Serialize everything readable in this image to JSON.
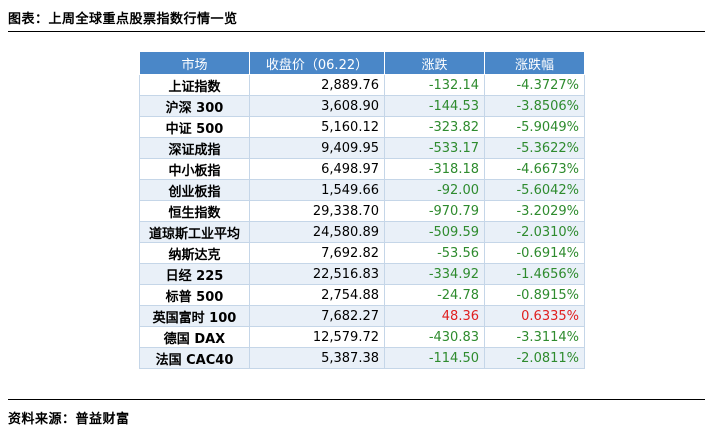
{
  "title": "图表：上周全球重点股票指数行情一览",
  "source": "资料来源：普益财富",
  "headers": [
    "市场",
    "收盘价（06.22）",
    "涨跌",
    "涨跌幅"
  ],
  "rows": [
    {
      "market": "上证指数",
      "close": "2,889.76",
      "change": "-132.14",
      "pct": "-4.3727%",
      "dir": "neg"
    },
    {
      "market": "沪深 300",
      "close": "3,608.90",
      "change": "-144.53",
      "pct": "-3.8506%",
      "dir": "neg"
    },
    {
      "market": "中证 500",
      "close": "5,160.12",
      "change": "-323.82",
      "pct": "-5.9049%",
      "dir": "neg"
    },
    {
      "market": "深证成指",
      "close": "9,409.95",
      "change": "-533.17",
      "pct": "-5.3622%",
      "dir": "neg"
    },
    {
      "market": "中小板指",
      "close": "6,498.97",
      "change": "-318.18",
      "pct": "-4.6673%",
      "dir": "neg"
    },
    {
      "market": "创业板指",
      "close": "1,549.66",
      "change": "-92.00",
      "pct": "-5.6042%",
      "dir": "neg"
    },
    {
      "market": "恒生指数",
      "close": "29,338.70",
      "change": "-970.79",
      "pct": "-3.2029%",
      "dir": "neg"
    },
    {
      "market": "道琼斯工业平均",
      "close": "24,580.89",
      "change": "-509.59",
      "pct": "-2.0310%",
      "dir": "neg"
    },
    {
      "market": "纳斯达克",
      "close": "7,692.82",
      "change": "-53.56",
      "pct": "-0.6914%",
      "dir": "neg"
    },
    {
      "market": "日经 225",
      "close": "22,516.83",
      "change": "-334.92",
      "pct": "-1.4656%",
      "dir": "neg"
    },
    {
      "market": "标普 500",
      "close": "2,754.88",
      "change": "-24.78",
      "pct": "-0.8915%",
      "dir": "neg"
    },
    {
      "market": "英国富时 100",
      "close": "7,682.27",
      "change": "48.36",
      "pct": "0.6335%",
      "dir": "pos"
    },
    {
      "market": "德国 DAX",
      "close": "12,579.72",
      "change": "-430.83",
      "pct": "-3.3114%",
      "dir": "neg"
    },
    {
      "market": "法国 CAC40",
      "close": "5,387.38",
      "change": "-114.50",
      "pct": "-2.0811%",
      "dir": "neg"
    }
  ],
  "colors": {
    "header_bg": "#4a87c8",
    "band": "#e9f0f8",
    "negative": "#2e8b2e",
    "positive": "#e02020"
  }
}
